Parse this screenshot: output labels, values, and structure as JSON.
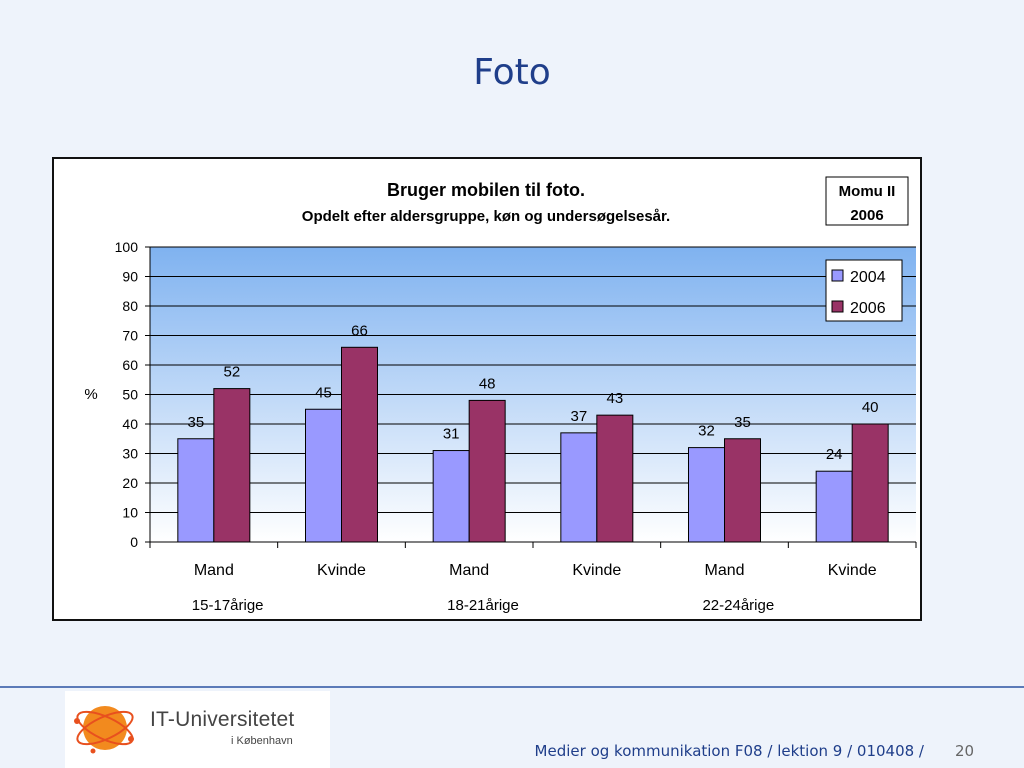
{
  "slide": {
    "title": "Foto"
  },
  "footer": {
    "course": "Medier og kommunikation F08 / lektion 9 / 010408 /",
    "page": "20",
    "logo_name": "IT-Universitetet",
    "logo_city": "i København"
  },
  "colors": {
    "series_2004": "#9999ff",
    "series_2006": "#993366",
    "plot_top": "#7fb2f0",
    "plot_bottom": "#ffffff",
    "title_blue": "#1f3e8a"
  },
  "chart_data": {
    "type": "bar",
    "title": "Bruger mobilen til foto.",
    "subtitle": "Opdelt efter aldersgruppe, køn og undersøgelsesår.",
    "badge": [
      "Momu II",
      "2006"
    ],
    "ylabel": "%",
    "ylim": [
      0,
      100
    ],
    "yticks": [
      "0",
      "10",
      "20",
      "30",
      "40",
      "50",
      "60",
      "70",
      "80",
      "90",
      "100"
    ],
    "grid": true,
    "legend_position": "top-right",
    "categories": [
      "Mand",
      "Kvinde",
      "Mand",
      "Kvinde",
      "Mand",
      "Kvinde"
    ],
    "groups": [
      "15-17årige",
      "18-21årige",
      "22-24årige"
    ],
    "series": [
      {
        "name": "2004",
        "values": [
          35,
          45,
          31,
          37,
          32,
          24
        ]
      },
      {
        "name": "2006",
        "values": [
          52,
          66,
          48,
          43,
          35,
          40
        ]
      }
    ]
  }
}
